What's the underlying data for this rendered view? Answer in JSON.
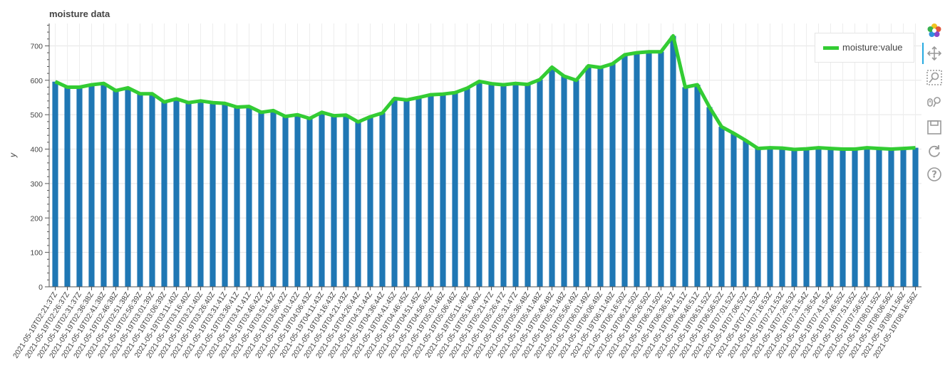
{
  "chart_data": {
    "type": "bar",
    "title": "moisture data",
    "xlabel": "",
    "ylabel": "y",
    "ylim": [
      0,
      765
    ],
    "yticks": [
      0,
      100,
      200,
      300,
      400,
      500,
      600,
      700
    ],
    "grid": true,
    "legend_position": "top-right",
    "categories": [
      "2021-05-19T02:21:37Z",
      "2021-05-19T02:26:37Z",
      "2021-05-19T02:31:37Z",
      "2021-05-19T02:36:38Z",
      "2021-05-19T02:41:38Z",
      "2021-05-19T02:46:38Z",
      "2021-05-19T02:51:38Z",
      "2021-05-19T02:56:39Z",
      "2021-05-19T03:01:39Z",
      "2021-05-19T03:06:39Z",
      "2021-05-19T03:11:40Z",
      "2021-05-19T03:16:40Z",
      "2021-05-19T03:21:40Z",
      "2021-05-19T03:26:40Z",
      "2021-05-19T03:31:41Z",
      "2021-05-19T03:36:41Z",
      "2021-05-19T03:41:41Z",
      "2021-05-19T03:46:42Z",
      "2021-05-19T03:51:42Z",
      "2021-05-19T03:56:42Z",
      "2021-05-19T04:01:42Z",
      "2021-05-19T04:06:43Z",
      "2021-05-19T04:11:43Z",
      "2021-05-19T04:16:43Z",
      "2021-05-19T04:21:43Z",
      "2021-05-19T04:26:44Z",
      "2021-05-19T04:31:44Z",
      "2021-05-19T04:36:44Z",
      "2021-05-19T04:41:45Z",
      "2021-05-19T04:46:45Z",
      "2021-05-19T04:51:45Z",
      "2021-05-19T04:56:45Z",
      "2021-05-19T05:01:46Z",
      "2021-05-19T05:06:46Z",
      "2021-05-19T05:11:46Z",
      "2021-05-19T05:16:46Z",
      "2021-05-19T05:21:47Z",
      "2021-05-19T05:26:47Z",
      "2021-05-19T05:31:47Z",
      "2021-05-19T05:36:48Z",
      "2021-05-19T05:41:48Z",
      "2021-05-19T05:46:48Z",
      "2021-05-19T05:51:48Z",
      "2021-05-19T05:56:49Z",
      "2021-05-19T06:01:49Z",
      "2021-05-19T06:06:49Z",
      "2021-05-19T06:11:49Z",
      "2021-05-19T06:16:50Z",
      "2021-05-19T06:21:50Z",
      "2021-05-19T06:26:50Z",
      "2021-05-19T06:31:50Z",
      "2021-05-19T06:36:51Z",
      "2021-05-19T06:41:51Z",
      "2021-05-19T06:46:51Z",
      "2021-05-19T06:51:52Z",
      "2021-05-19T06:56:52Z",
      "2021-05-19T07:01:52Z",
      "2021-05-19T07:06:52Z",
      "2021-05-19T07:11:53Z",
      "2021-05-19T07:16:53Z",
      "2021-05-19T07:21:53Z",
      "2021-05-19T07:26:53Z",
      "2021-05-19T07:31:54Z",
      "2021-05-19T07:36:54Z",
      "2021-05-19T07:41:54Z",
      "2021-05-19T07:46:55Z",
      "2021-05-19T07:51:55Z",
      "2021-05-19T07:56:55Z",
      "2021-05-19T08:01:55Z",
      "2021-05-19T08:06:56Z",
      "2021-05-19T08:11:56Z",
      "2021-05-19T08:16:56Z"
    ],
    "series": [
      {
        "name": "moisture:value",
        "kind": "line",
        "values": [
          596,
          580,
          580,
          587,
          591,
          570,
          578,
          561,
          561,
          537,
          546,
          535,
          540,
          535,
          533,
          522,
          524,
          507,
          512,
          495,
          500,
          489,
          507,
          497,
          499,
          479,
          494,
          505,
          547,
          543,
          550,
          558,
          560,
          564,
          577,
          597,
          590,
          587,
          591,
          588,
          602,
          638,
          612,
          600,
          642,
          637,
          648,
          674,
          680,
          683,
          683,
          729,
          580,
          587,
          522,
          465,
          446,
          425,
          402,
          404,
          403,
          399,
          401,
          404,
          402,
          400,
          400,
          404,
          402,
          400,
          402,
          404
        ],
        "color": "#33cc33"
      }
    ],
    "bar_color": "#1f77b4"
  },
  "legend": {
    "label": "moisture:value"
  },
  "toolbar": [
    {
      "name": "bokeh-logo-icon"
    },
    {
      "name": "pan-icon"
    },
    {
      "name": "box-zoom-icon"
    },
    {
      "name": "wheel-zoom-icon"
    },
    {
      "name": "save-icon"
    },
    {
      "name": "reset-icon"
    },
    {
      "name": "help-icon"
    }
  ]
}
